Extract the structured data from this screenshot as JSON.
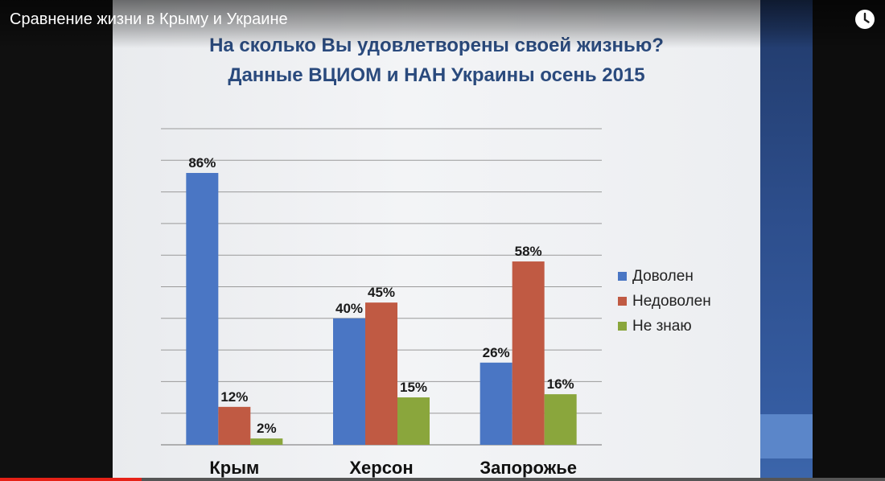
{
  "video": {
    "title": "Сравнение жизни в Крыму и Украине",
    "progress": 0.16
  },
  "icons": {
    "watch_later": "clock-icon"
  },
  "colors": {
    "series_1": "#4a76c4",
    "series_2": "#c05a43",
    "series_3": "#8aa63c",
    "title": "#2a4a7d"
  },
  "chart_data": {
    "type": "bar",
    "title": "На сколько Вы удовлетворены своей жизнью?",
    "subtitle": "Данные ВЦИОМ и НАН Украины осень 2015",
    "categories": [
      "Крым",
      "Херсон",
      "Запорожье"
    ],
    "series": [
      {
        "name": "Доволен",
        "values": [
          86,
          40,
          26
        ],
        "labels": [
          "86%",
          "40%",
          "26%"
        ]
      },
      {
        "name": "Недоволен",
        "values": [
          12,
          45,
          58
        ],
        "labels": [
          "12%",
          "45%",
          "58%"
        ]
      },
      {
        "name": "Не знаю",
        "values": [
          2,
          15,
          16
        ],
        "labels": [
          "2%",
          "15%",
          "16%"
        ]
      }
    ],
    "ylim": [
      0,
      100
    ],
    "grid": true,
    "legend": "right",
    "data_labels": true
  }
}
